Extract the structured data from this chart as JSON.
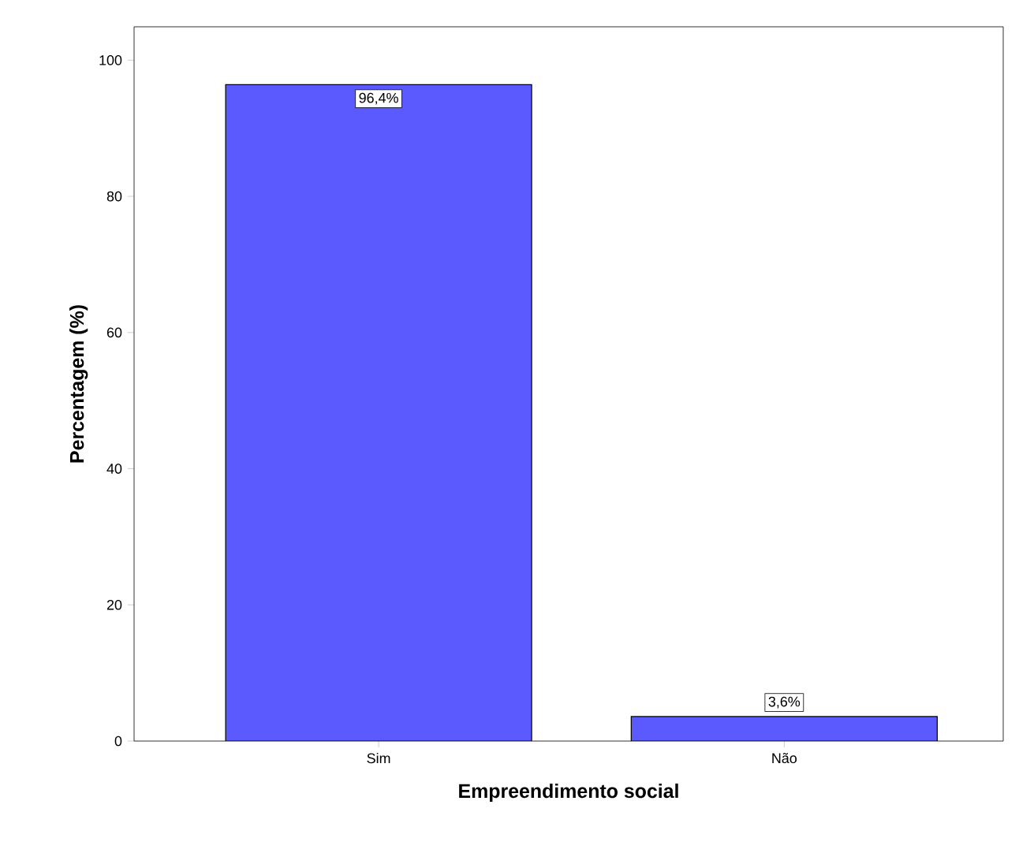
{
  "chart_data": {
    "type": "bar",
    "xlabel": "Empreendimento social",
    "ylabel": "Percentagem (%)",
    "categories": [
      "Sim",
      "Não"
    ],
    "values": [
      96.4,
      3.6
    ],
    "value_labels": [
      "96,4%",
      "3,6%"
    ],
    "color": "#5a5aff",
    "ylim": [
      0,
      104.9
    ],
    "yticks": [
      0,
      20,
      40,
      60,
      80,
      100
    ],
    "grid": false
  }
}
